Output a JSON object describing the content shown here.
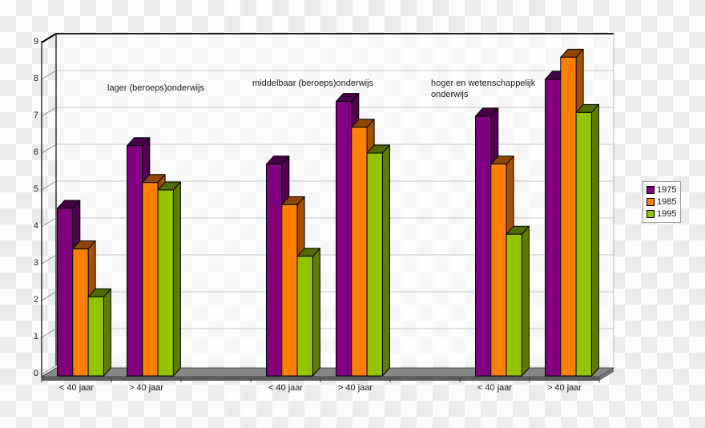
{
  "chart_data": {
    "type": "bar",
    "style": "3d-grouped-vertical",
    "title": "",
    "xlabel": "",
    "ylabel": "",
    "ylim": [
      0,
      9
    ],
    "yticks": [
      0,
      1,
      2,
      3,
      4,
      5,
      6,
      7,
      8,
      9
    ],
    "grid": true,
    "legend_position": "right",
    "categories": [
      "< 40 jaar",
      "> 40 jaar",
      "< 40 jaar",
      "> 40 jaar",
      "< 40 jaar",
      "> 40 jaar"
    ],
    "group_labels": [
      "lager (beroeps)onderwijs",
      "middelbaar (beroeps)onderwijs",
      "hoger en wetenschappelijk onderwijs"
    ],
    "series": [
      {
        "name": "1975",
        "color": "#800080",
        "values": [
          4.5,
          6.2,
          5.7,
          7.4,
          7.0,
          8.0
        ]
      },
      {
        "name": "1985",
        "color": "#ff8000",
        "values": [
          3.4,
          5.2,
          4.6,
          6.7,
          5.7,
          8.6
        ]
      },
      {
        "name": "1995",
        "color": "#93c400",
        "values": [
          2.1,
          5.0,
          3.2,
          6.0,
          3.8,
          7.1
        ]
      }
    ]
  },
  "colors": {
    "gridline": "#c6c6c6",
    "axis": "#000000",
    "floor_top": "#868686",
    "floor_front": "#5c5c5c",
    "floor_side": "#747474",
    "checker_light": "#fdfdfd",
    "checker_dark": "#ebebeb"
  }
}
